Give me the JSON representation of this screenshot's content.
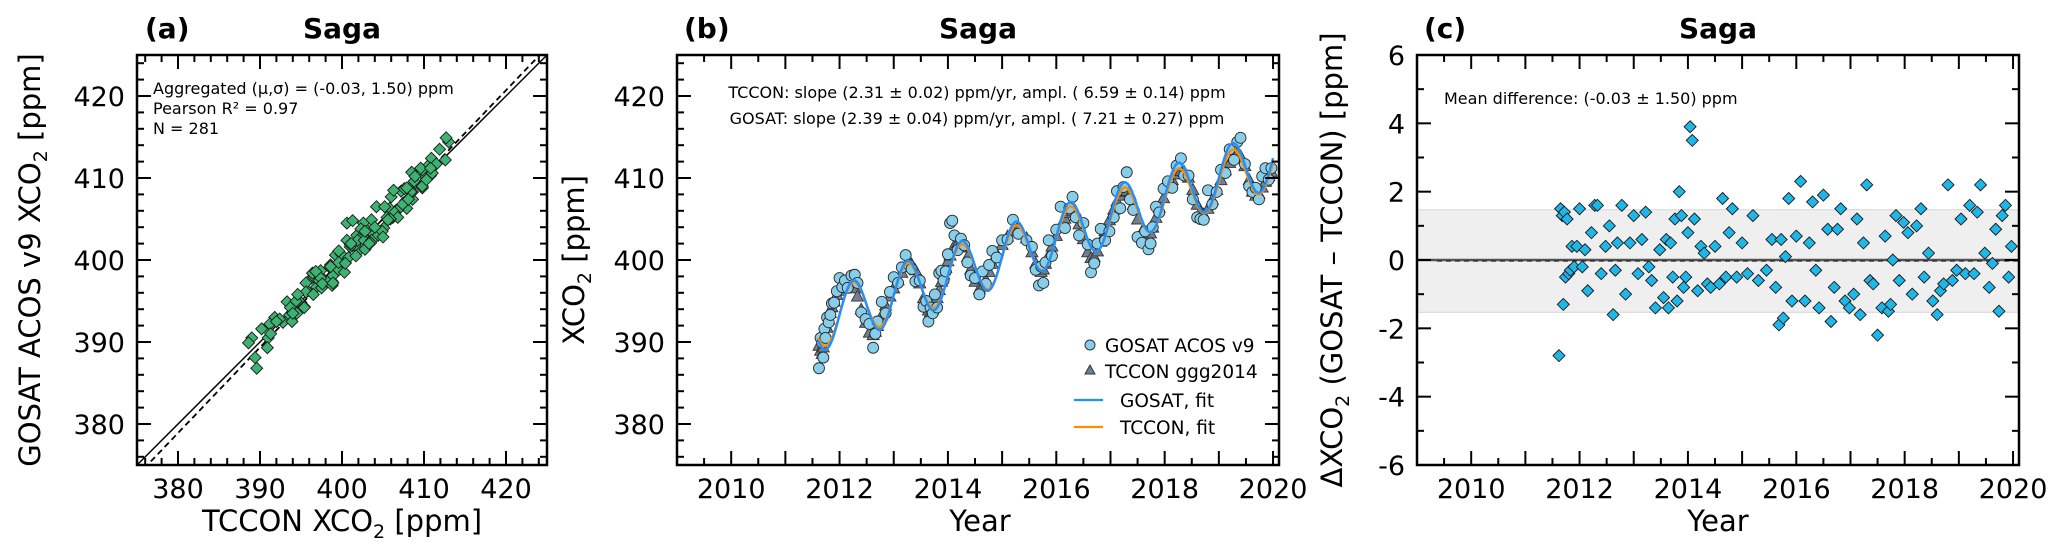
{
  "chart_data": [
    {
      "panel": "a",
      "type": "scatter",
      "panel_label": "(a)",
      "title": "Saga",
      "xlabel": "TCCON XCO2 [ppm]",
      "ylabel": "GOSAT ACOS v9 XCO2 [ppm]",
      "xlim": [
        375,
        425
      ],
      "ylim": [
        375,
        425
      ],
      "xticks": [
        380,
        390,
        400,
        410,
        420
      ],
      "yticks": [
        380,
        390,
        400,
        410,
        420
      ],
      "annotations": [
        "Aggregated (μ,σ) = (-0.03, 1.50) ppm",
        "Pearson R² = 0.97",
        "N =  281"
      ],
      "lines": [
        {
          "name": "1:1 line",
          "style": "solid"
        },
        {
          "name": "regression fit",
          "style": "dashed",
          "slope": 1.045,
          "intercept": -18.2
        }
      ],
      "marker_color": "#3cb371",
      "x_source": "observations.tccon",
      "y_source": "observations.gosat"
    },
    {
      "panel": "b",
      "type": "line",
      "panel_label": "(b)",
      "title": "Saga",
      "xlabel": "Year",
      "ylabel": "XCO2 [ppm]",
      "xlim": [
        2009.0,
        2020.11
      ],
      "ylim": [
        375,
        425
      ],
      "xticks": [
        2010,
        2012,
        2014,
        2016,
        2018,
        2020
      ],
      "yticks": [
        380,
        390,
        400,
        410,
        420
      ],
      "annotations": [
        "TCCON: slope (2.31 ± 0.02) ppm/yr, ampl. ( 6.59 ± 0.14) ppm",
        "GOSAT: slope (2.39 ± 0.04) ppm/yr, ampl. ( 7.21 ± 0.27) ppm"
      ],
      "legend": {
        "position": "lower-right",
        "entries": [
          {
            "label": "GOSAT ACOS v9",
            "kind": "circle",
            "color": "#87ceeb"
          },
          {
            "label": "TCCON ggg2014",
            "kind": "triangle",
            "color": "#708090"
          },
          {
            "label": "GOSAT, fit",
            "kind": "line",
            "color": "#1e90ff"
          },
          {
            "label": "TCCON, fit",
            "kind": "line",
            "color": "#ff8c00"
          }
        ]
      },
      "series": [
        {
          "name": "GOSAT ACOS v9",
          "x_source": "observations.t",
          "y_source": "observations.gosat"
        },
        {
          "name": "TCCON ggg2014",
          "x_source": "observations.t",
          "y_source": "observations.tccon"
        },
        {
          "name": "GOSAT, fit",
          "model": {
            "t0": 2012.0,
            "offset": 393.3,
            "slope": 2.39,
            "amplitude": 7.21,
            "phase": 0.05,
            "start": 2011.6,
            "end": 2020.0
          }
        },
        {
          "name": "TCCON, fit",
          "model": {
            "t0": 2012.0,
            "offset": 393.4,
            "slope": 2.31,
            "amplitude": 6.59,
            "phase": 0.05,
            "start": 2011.6,
            "end": 2020.0
          }
        }
      ]
    },
    {
      "panel": "c",
      "type": "scatter",
      "panel_label": "(c)",
      "title": "Saga",
      "xlabel": "Year",
      "ylabel": "ΔXCO2 (GOSAT – TCCON) [ppm]",
      "xlim": [
        2009.0,
        2020.11
      ],
      "ylim": [
        -6,
        6
      ],
      "xticks": [
        2010,
        2012,
        2014,
        2016,
        2018,
        2020
      ],
      "yticks": [
        -6,
        -4,
        -2,
        0,
        2,
        4,
        6
      ],
      "annotations": [
        "Mean difference: (-0.03 ± 1.50) ppm"
      ],
      "mean": -0.03,
      "std": 1.5,
      "marker_color": "#1fb6e8",
      "band_color": "#efefef",
      "x_source": "observations.t",
      "y_source": "observations.diff"
    }
  ],
  "observations": {
    "t": [
      2011.62,
      2011.65,
      2011.68,
      2011.7,
      2011.72,
      2011.74,
      2011.77,
      2011.8,
      2011.83,
      2011.86,
      2011.9,
      2011.95,
      2012.0,
      2012.05,
      2012.1,
      2012.15,
      2012.22,
      2012.28,
      2012.33,
      2012.4,
      2012.48,
      2012.55,
      2012.62,
      2012.66,
      2012.7,
      2012.78,
      2012.85,
      2012.93,
      2013.0,
      2013.08,
      2013.15,
      2013.22,
      2013.28,
      2013.33,
      2013.4,
      2013.48,
      2013.55,
      2013.6,
      2013.64,
      2013.68,
      2013.72,
      2013.76,
      2013.8,
      2013.84,
      2013.88,
      2013.92,
      2013.96,
      2014.0,
      2014.04,
      2014.08,
      2014.12,
      2014.18,
      2014.24,
      2014.3,
      2014.36,
      2014.42,
      2014.5,
      2014.58,
      2014.64,
      2014.7,
      2014.76,
      2014.82,
      2014.9,
      2015.0,
      2015.1,
      2015.2,
      2015.3,
      2015.45,
      2015.55,
      2015.62,
      2015.68,
      2015.72,
      2015.76,
      2015.8,
      2015.86,
      2015.92,
      2016.0,
      2016.08,
      2016.16,
      2016.24,
      2016.3,
      2016.36,
      2016.42,
      2016.5,
      2016.58,
      2016.64,
      2016.7,
      2016.76,
      2016.82,
      2016.9,
      2016.98,
      2017.06,
      2017.12,
      2017.18,
      2017.24,
      2017.3,
      2017.36,
      2017.42,
      2017.5,
      2017.58,
      2017.64,
      2017.7,
      2017.74,
      2017.78,
      2017.84,
      2017.9,
      2017.98,
      2018.06,
      2018.14,
      2018.22,
      2018.3,
      2018.36,
      2018.44,
      2018.52,
      2018.6,
      2018.66,
      2018.72,
      2018.8,
      2018.88,
      2018.96,
      2019.04,
      2019.12,
      2019.2,
      2019.28,
      2019.34,
      2019.4,
      2019.48,
      2019.56,
      2019.62,
      2019.68,
      2019.74,
      2019.8,
      2019.86,
      2019.92,
      2019.97
    ],
    "tccon": [
      389.6,
      389.0,
      388.6,
      389.4,
      390.2,
      391.0,
      391.8,
      392.8,
      393.6,
      394.3,
      395.0,
      395.8,
      396.3,
      396.9,
      397.2,
      397.5,
      397.3,
      396.6,
      395.6,
      394.0,
      392.4,
      391.2,
      390.9,
      391.3,
      392.0,
      393.3,
      394.5,
      395.6,
      396.6,
      397.6,
      398.5,
      399.2,
      399.6,
      399.5,
      398.8,
      397.2,
      395.4,
      394.4,
      393.9,
      393.7,
      394.0,
      394.6,
      395.4,
      396.4,
      397.4,
      398.3,
      399.1,
      399.9,
      400.6,
      401.3,
      401.8,
      402.1,
      402.2,
      401.6,
      400.4,
      398.9,
      397.4,
      396.5,
      396.8,
      397.6,
      398.6,
      399.6,
      400.8,
      401.9,
      402.9,
      403.6,
      403.8,
      402.7,
      401.0,
      399.6,
      398.8,
      398.6,
      398.9,
      399.6,
      400.6,
      401.7,
      403.0,
      404.2,
      405.1,
      405.8,
      406.0,
      405.5,
      404.4,
      402.6,
      401.0,
      400.3,
      400.4,
      401.1,
      402.3,
      403.6,
      404.9,
      406.2,
      407.2,
      407.9,
      408.4,
      408.5,
      408.0,
      406.8,
      405.0,
      403.5,
      402.8,
      402.8,
      403.3,
      404.0,
      405.2,
      406.4,
      407.6,
      408.8,
      409.8,
      410.5,
      410.9,
      410.8,
      410.1,
      408.6,
      406.8,
      405.9,
      405.6,
      406.3,
      407.4,
      408.6,
      409.8,
      411.0,
      411.9,
      412.6,
      413.0,
      412.7,
      411.5,
      409.8,
      408.4,
      407.9,
      408.1,
      408.9,
      409.6,
      410.3,
      410.8
    ],
    "gosat": [
      386.8,
      390.5,
      389.9,
      388.1,
      391.6,
      390.5,
      393.0,
      392.4,
      393.3,
      394.7,
      394.8,
      396.2,
      397.8,
      396.7,
      397.5,
      396.6,
      398.1,
      398.2,
      397.2,
      393.6,
      392.8,
      392.2,
      389.3,
      391.0,
      392.5,
      394.9,
      393.5,
      396.1,
      397.9,
      397.2,
      399.1,
      400.6,
      399.4,
      398.9,
      397.4,
      397.5,
      394.3,
      395.0,
      392.5,
      394.2,
      393.5,
      395.8,
      394.2,
      398.4,
      398.7,
      397.5,
      398.6,
      400.7,
      404.5,
      404.8,
      403.0,
      401.2,
      402.6,
      401.8,
      399.7,
      398.1,
      397.8,
      395.8,
      398.6,
      397.1,
      399.4,
      401.1,
      400.3,
      402.4,
      402.5,
      404.9,
      403.2,
      402.4,
      401.6,
      398.8,
      396.9,
      399.2,
      397.2,
      399.7,
      402.4,
      400.5,
      403.7,
      406.5,
      403.9,
      406.3,
      407.7,
      405.2,
      403.0,
      404.5,
      401.9,
      398.5,
      399.6,
      402.0,
      403.8,
      402.4,
      403.5,
      405.2,
      408.4,
      406.3,
      408.9,
      410.7,
      407.4,
      406.1,
      402.8,
      402.1,
      403.5,
      401.3,
      402.0,
      404.0,
      406.5,
      405.8,
      408.7,
      409.6,
      408.8,
      411.5,
      412.4,
      410.3,
      410.3,
      407.4,
      405.2,
      405.0,
      404.9,
      408.5,
      406.8,
      408.3,
      411.0,
      410.6,
      413.5,
      412.2,
      414.4,
      414.9,
      411.7,
      409.0,
      408.3,
      408.8,
      407.4,
      410.2,
      411.2,
      409.8,
      411.2
    ],
    "diff": [
      -2.8,
      1.5,
      1.3,
      -1.3,
      1.4,
      -0.5,
      1.2,
      -0.4,
      -0.3,
      0.4,
      -0.2,
      0.4,
      1.5,
      -0.2,
      0.3,
      -0.9,
      0.8,
      1.6,
      1.6,
      -0.4,
      0.4,
      1.0,
      -1.6,
      -0.3,
      0.5,
      1.6,
      -1.0,
      0.5,
      1.3,
      -0.4,
      0.6,
      1.4,
      -0.2,
      -0.6,
      -1.4,
      0.3,
      -1.1,
      0.6,
      -1.4,
      0.5,
      -0.5,
      1.2,
      -1.2,
      2.0,
      1.3,
      -0.8,
      -0.5,
      0.8,
      3.9,
      3.5,
      1.2,
      -0.9,
      0.4,
      0.2,
      -0.7,
      -0.8,
      0.4,
      -0.7,
      1.8,
      -0.5,
      0.8,
      1.5,
      -0.5,
      0.5,
      -0.4,
      1.3,
      -0.6,
      -0.3,
      0.6,
      -0.8,
      -1.9,
      0.6,
      -1.7,
      0.1,
      1.8,
      -1.2,
      0.7,
      2.3,
      -1.2,
      0.5,
      1.7,
      -0.3,
      -1.4,
      1.9,
      0.9,
      -1.8,
      -0.8,
      0.9,
      1.5,
      -1.2,
      -1.4,
      -1.0,
      1.2,
      -1.6,
      0.5,
      2.2,
      -0.6,
      -0.7,
      -2.2,
      -1.4,
      0.7,
      -1.5,
      -1.3,
      0.0,
      1.3,
      -0.6,
      1.1,
      0.8,
      -1.0,
      1.0,
      1.5,
      -0.5,
      0.2,
      -1.2,
      -1.6,
      -0.9,
      -0.7,
      2.2,
      -0.6,
      -0.3,
      1.2,
      -0.4,
      1.6,
      -0.4,
      1.4,
      2.2,
      0.2,
      -0.8,
      -0.1,
      0.9,
      -1.5,
      1.3,
      1.6,
      -0.5,
      0.4
    ]
  }
}
